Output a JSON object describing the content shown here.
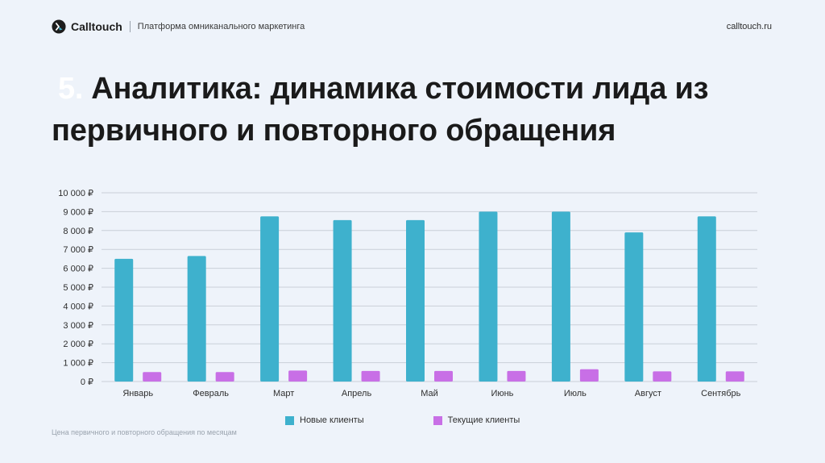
{
  "header": {
    "logo_text": "Calltouch",
    "tagline": "Платформа омниканального маркетинга",
    "site": "calltouch.ru"
  },
  "slide": {
    "number": "5.",
    "title": "Аналитика: динамика стоимости лида из первичного и повторного обращения"
  },
  "caption": "Цена первичного и повторного обращения по месяцам",
  "colors": {
    "new_clients": "#3eb1cd",
    "current_clients": "#c86fe6",
    "grid": "#c9cfd8",
    "background": "#eef3fa"
  },
  "chart_data": {
    "type": "bar",
    "categories": [
      "Январь",
      "Февраль",
      "Март",
      "Апрель",
      "Май",
      "Июнь",
      "Июль",
      "Август",
      "Сентябрь"
    ],
    "series": [
      {
        "name": "Новые клиенты",
        "values": [
          6500,
          6650,
          8750,
          8550,
          8550,
          9000,
          9000,
          7900,
          8750
        ]
      },
      {
        "name": "Текущие клиенты",
        "values": [
          500,
          500,
          580,
          560,
          560,
          560,
          650,
          540,
          540
        ]
      }
    ],
    "ylim": [
      0,
      10000
    ],
    "yticks": [
      "0 ₽",
      "1 000 ₽",
      "2 000 ₽",
      "3 000 ₽",
      "4 000 ₽",
      "5 000 ₽",
      "6 000 ₽",
      "7 000 ₽",
      "8 000 ₽",
      "9 000 ₽",
      "10 000 ₽"
    ],
    "grid": true,
    "legend_position": "bottom"
  }
}
